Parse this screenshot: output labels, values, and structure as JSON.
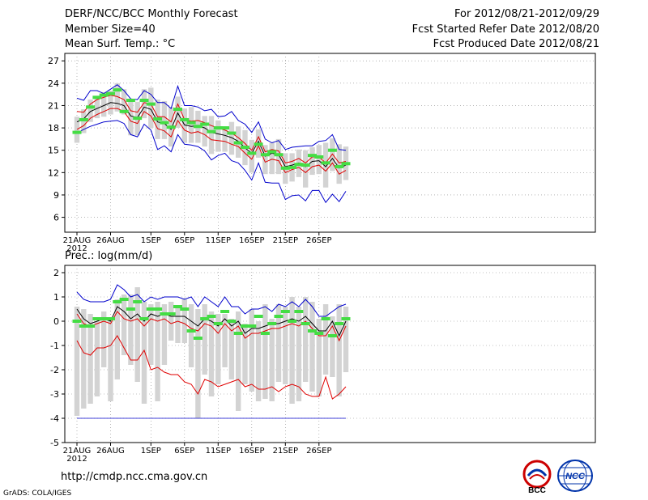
{
  "header": {
    "title": "DERF/NCC/BCC Monthly Forecast",
    "member_size": "Member Size=40",
    "variable": "Mean Surf. Temp.: °C",
    "for_period": "For 2012/08/21-2012/09/29",
    "start_date": "Fcst Started Refer Date 2012/08/20",
    "produced_date": "Fcst Produced Date 2012/08/21"
  },
  "footer": {
    "url": "http://cmdp.ncc.cma.gov.cn",
    "credit": "GrADS: COLA/IGES",
    "logo_bcc": "BCC",
    "logo_ncc": "NCC"
  },
  "colors": {
    "box": "#d3d3d3",
    "ens": "#000000",
    "red": "#e00000",
    "blue": "#0000cc",
    "green": "#44dd44"
  },
  "chart_data": [
    {
      "type": "line",
      "title": "Mean Surf. Temp.: °C",
      "ylim": [
        4,
        28
      ],
      "yticks": [
        6,
        9,
        12,
        15,
        18,
        21,
        24,
        27
      ],
      "xticks": [
        {
          "label": "21AUG",
          "day": 1,
          "sub": "2012"
        },
        {
          "label": "26AUG",
          "day": 6
        },
        {
          "label": "1SEP",
          "day": 12
        },
        {
          "label": "6SEP",
          "day": 17
        },
        {
          "label": "11SEP",
          "day": 22
        },
        {
          "label": "16SEP",
          "day": 27
        },
        {
          "label": "21SEP",
          "day": 32
        },
        {
          "label": "26SEP",
          "day": 37
        }
      ],
      "days": 40,
      "series": [
        {
          "name": "ensemble-mean",
          "values": [
            18.8,
            19.2,
            20.2,
            20.6,
            21,
            21.4,
            21.3,
            21,
            19.6,
            19.4,
            20.8,
            20.5,
            18.8,
            18.6,
            17.8,
            20,
            18.4,
            18.2,
            18.3,
            18,
            17.4,
            17.2,
            17,
            16.7,
            16.2,
            15.3,
            14.6,
            16.2,
            14.2,
            14.6,
            14.4,
            12.8,
            13,
            13.3,
            12.8,
            13.5,
            13.6,
            12.8,
            13.9,
            12.6,
            13
          ]
        },
        {
          "name": "upper-red",
          "values": [
            20.2,
            20.1,
            21.2,
            21.8,
            22.1,
            22.4,
            22.2,
            21.8,
            20.3,
            20.1,
            21.4,
            21.2,
            19.5,
            19.5,
            18.8,
            21.2,
            19.1,
            18.9,
            19,
            18.7,
            18.3,
            18,
            17.7,
            17.3,
            16.7,
            15.9,
            15,
            16.8,
            14.8,
            15.1,
            14.9,
            13.3,
            13.5,
            13.9,
            13.3,
            14.1,
            14.1,
            13.3,
            14.5,
            13.3,
            13.5
          ]
        },
        {
          "name": "lower-red",
          "values": [
            17.8,
            18.3,
            19.3,
            19.8,
            20.2,
            20.6,
            20.6,
            20.2,
            18.9,
            18.6,
            20.2,
            19.6,
            17.9,
            17.6,
            16.8,
            19,
            17.7,
            17.3,
            17.5,
            17.1,
            16.4,
            16.3,
            16.2,
            15.8,
            15.5,
            14.6,
            13.8,
            15.6,
            13.4,
            13.8,
            13.6,
            12,
            12.4,
            12.7,
            12,
            12.8,
            13,
            12.2,
            13.3,
            11.8,
            12.3
          ]
        },
        {
          "name": "max-blue",
          "values": [
            22,
            21.7,
            23,
            23,
            22.6,
            23.2,
            23.8,
            23,
            21.9,
            21.8,
            23,
            22.5,
            21.4,
            21.4,
            20.6,
            23.6,
            21,
            21,
            20.8,
            20.3,
            20.5,
            19.5,
            19.6,
            20.2,
            19,
            18.5,
            17.4,
            18.8,
            16.5,
            16,
            16.3,
            15.1,
            15.4,
            15.5,
            15.6,
            15.6,
            16.2,
            16.3,
            17.1,
            15.1,
            15
          ]
        },
        {
          "name": "min-blue",
          "values": [
            17.3,
            17.8,
            18.2,
            18.5,
            18.8,
            18.9,
            19,
            18.6,
            17.1,
            16.8,
            18.5,
            17.7,
            15.1,
            15.6,
            14.8,
            17.1,
            15.8,
            15.7,
            15.5,
            14.9,
            13.7,
            14.3,
            14.6,
            13.6,
            13.3,
            12.3,
            11,
            13.3,
            10.7,
            10.6,
            10.6,
            8.4,
            8.9,
            9,
            8.2,
            9.6,
            9.6,
            8,
            9.1,
            8.1,
            9.5
          ]
        }
      ],
      "box_low": [
        16,
        17.3,
        18.8,
        19.3,
        19.5,
        19.8,
        20.2,
        19.8,
        17,
        17,
        19.3,
        18,
        16.5,
        16.5,
        15.5,
        18,
        16,
        16,
        16,
        15.5,
        14.5,
        14.8,
        14.8,
        14.4,
        14,
        13,
        12,
        14,
        11.8,
        11.8,
        11.8,
        10.5,
        10.8,
        11.4,
        10,
        11.7,
        11.8,
        10,
        12.2,
        10.5,
        11
      ],
      "box_high": [
        19.5,
        20.5,
        21.8,
        22.2,
        22.8,
        23,
        24,
        23.2,
        21.8,
        21.5,
        23.2,
        23.4,
        21.8,
        21.6,
        20.8,
        22.2,
        20.6,
        20.8,
        20.3,
        19.6,
        19.6,
        19,
        18.2,
        18.8,
        18.2,
        17.7,
        16.4,
        17.8,
        15.7,
        16,
        16.5,
        14.6,
        14.6,
        15.1,
        15,
        15.4,
        15.7,
        16,
        16.6,
        15.8,
        15.5
      ],
      "green": [
        17.4,
        19.1,
        20.8,
        22.1,
        22.4,
        22.6,
        23.1,
        20.2,
        21.7,
        19.3,
        21.7,
        21.2,
        19.2,
        18.7,
        18.1,
        20.5,
        19.1,
        18.7,
        18.2,
        18.5,
        17.5,
        18,
        18,
        17.3,
        16,
        15.4,
        14.6,
        15.8,
        14.4,
        14.8,
        14.4,
        12.6,
        12.7,
        13.1,
        13,
        14.3,
        14.1,
        13.3,
        15,
        12.8,
        13.2
      ]
    },
    {
      "type": "line",
      "title": "Prec.: log(mm/d)",
      "ylim": [
        -5,
        2.3
      ],
      "yticks": [
        -5,
        -4,
        -3,
        -2,
        -1,
        0,
        1,
        2
      ],
      "xticks": [
        {
          "label": "21AUG",
          "day": 1,
          "sub": "2012"
        },
        {
          "label": "26AUG",
          "day": 6
        },
        {
          "label": "1SEP",
          "day": 12
        },
        {
          "label": "6SEP",
          "day": 17
        },
        {
          "label": "11SEP",
          "day": 22
        },
        {
          "label": "16SEP",
          "day": 27
        },
        {
          "label": "21SEP",
          "day": 32
        },
        {
          "label": "26SEP",
          "day": 37
        }
      ],
      "days": 40,
      "series": [
        {
          "name": "ensemble-mean",
          "values": [
            0.5,
            0.1,
            -0.1,
            0.0,
            0.1,
            0.0,
            0.6,
            0.4,
            0.1,
            0.3,
            0.0,
            0.3,
            0.2,
            0.3,
            0.2,
            0.2,
            0.2,
            0.0,
            -0.2,
            0.1,
            0.0,
            -0.2,
            0.1,
            -0.2,
            0.0,
            -0.5,
            -0.3,
            -0.3,
            -0.2,
            -0.1,
            -0.1,
            0.0,
            0.1,
            0.0,
            0.2,
            -0.1,
            -0.4,
            -0.4,
            0.0,
            -0.6,
            0.0
          ]
        },
        {
          "name": "upper-red",
          "values": [
            0.3,
            -0.1,
            -0.2,
            -0.1,
            0.0,
            -0.1,
            0.4,
            0.1,
            0.0,
            0.1,
            -0.2,
            0.1,
            0.0,
            0.1,
            -0.1,
            0.0,
            -0.1,
            -0.3,
            -0.4,
            -0.1,
            -0.2,
            -0.5,
            -0.1,
            -0.4,
            -0.2,
            -0.7,
            -0.5,
            -0.5,
            -0.4,
            -0.3,
            -0.3,
            -0.2,
            -0.1,
            -0.2,
            0.0,
            -0.3,
            -0.6,
            -0.6,
            -0.2,
            -0.8,
            -0.2
          ]
        },
        {
          "name": "lower-red",
          "values": [
            -0.8,
            -1.3,
            -1.4,
            -1.1,
            -1.1,
            -1.0,
            -0.6,
            -1.1,
            -1.6,
            -1.6,
            -1.2,
            -2.0,
            -1.9,
            -2.1,
            -2.2,
            -2.2,
            -2.5,
            -2.6,
            -3.0,
            -2.4,
            -2.5,
            -2.7,
            -2.6,
            -2.5,
            -2.4,
            -2.7,
            -2.6,
            -2.8,
            -2.8,
            -2.7,
            -2.9,
            -2.7,
            -2.6,
            -2.7,
            -3.0,
            -3.1,
            -3.1,
            -2.3,
            -3.2,
            -3.0,
            -2.7
          ]
        },
        {
          "name": "max-blue",
          "values": [
            1.2,
            0.9,
            0.8,
            0.8,
            0.8,
            0.9,
            1.5,
            1.3,
            1.0,
            1.1,
            0.8,
            1.0,
            0.9,
            1.0,
            1.0,
            1.0,
            0.9,
            1.0,
            0.6,
            1.0,
            0.8,
            0.6,
            1.0,
            0.6,
            0.6,
            0.3,
            0.5,
            0.5,
            0.6,
            0.4,
            0.7,
            0.6,
            0.8,
            0.6,
            0.9,
            0.6,
            0.2,
            0.2,
            0.4,
            0.6,
            0.7
          ]
        },
        {
          "name": "min-blue",
          "values": [
            -4,
            -4,
            -4,
            -4,
            -4,
            -4,
            -4,
            -4,
            -4,
            -4,
            -4,
            -4,
            -4,
            -4,
            -4,
            -4,
            -4,
            -4,
            -4,
            -4,
            -4,
            -4,
            -4,
            -4,
            -4,
            -4,
            -4,
            -4,
            -4,
            -4,
            -4,
            -4,
            -4,
            -4,
            -4,
            -4,
            -4,
            -4,
            -4,
            -4,
            -4
          ]
        }
      ],
      "box_low": [
        -3.9,
        -3.6,
        -3.4,
        -3.1,
        -1.9,
        -3.3,
        -2.4,
        -1.4,
        -1.8,
        -2.5,
        -3.4,
        -1.8,
        -3.3,
        -1.8,
        -0.8,
        -0.9,
        -0.9,
        -1.9,
        -4,
        -2.2,
        -3.1,
        -2.6,
        -1.9,
        -2.4,
        -3.7,
        -2.6,
        -2.9,
        -3.3,
        -3.2,
        -3.3,
        -2.5,
        -2.6,
        -3.4,
        -3.3,
        -2.5,
        -2.9,
        -3.1,
        -2.2,
        -2.3,
        -3.1,
        -2.1
      ],
      "box_high": [
        0.6,
        0.5,
        0.3,
        0.0,
        0.4,
        0.0,
        0.9,
        1.1,
        1.1,
        1.4,
        0.8,
        0.7,
        0.8,
        0.7,
        0.8,
        0.6,
        0.9,
        0.7,
        0.5,
        0.7,
        0.4,
        0.3,
        0.3,
        0.1,
        0.4,
        -0.1,
        0.5,
        0.0,
        0.7,
        0.1,
        0.7,
        0.6,
        1.0,
        0.6,
        1.0,
        0.8,
        0.1,
        0.7,
        0.2,
        0.7,
        0.6
      ],
      "green": [
        0.0,
        -0.2,
        -0.2,
        0.1,
        0.1,
        0.1,
        0.8,
        0.9,
        0.5,
        0.8,
        0.1,
        0.5,
        0.5,
        0.3,
        0.3,
        0.6,
        0.5,
        -0.4,
        -0.7,
        0.1,
        0.2,
        -0.1,
        0.4,
        0.0,
        -0.5,
        -0.2,
        -0.2,
        0.2,
        -0.5,
        -0.1,
        0.2,
        0.4,
        0.0,
        0.4,
        -0.1,
        -0.4,
        -0.5,
        0.1,
        -0.6,
        -0.1,
        0.1
      ]
    }
  ]
}
